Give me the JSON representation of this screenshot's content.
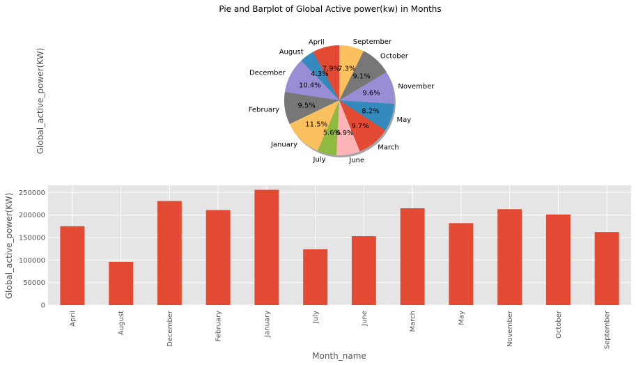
{
  "figure": {
    "title": "Pie and Barplot of Global Active power(kw) in Months"
  },
  "pie_chart": {
    "ylabel": "Global_active_power(KW)"
  },
  "bar_chart": {
    "xlabel": "Month_name",
    "ylabel": "Global_active_power(KW)"
  },
  "chart_data": [
    {
      "type": "pie",
      "ylabel": "Global_active_power(KW)",
      "startangle_deg": 90,
      "counterclock": true,
      "shadow": true,
      "slices": [
        {
          "label": "April",
          "pct_label": "7.9%",
          "value": 7.9,
          "color": "#E24A33"
        },
        {
          "label": "August",
          "pct_label": "4.3%",
          "value": 4.3,
          "color": "#348ABD"
        },
        {
          "label": "December",
          "pct_label": "10.4%",
          "value": 10.4,
          "color": "#988ED5"
        },
        {
          "label": "February",
          "pct_label": "9.5%",
          "value": 9.5,
          "color": "#777777"
        },
        {
          "label": "January",
          "pct_label": "11.5%",
          "value": 11.5,
          "color": "#FBC15E"
        },
        {
          "label": "July",
          "pct_label": "5.6%",
          "value": 5.6,
          "color": "#8EBA42"
        },
        {
          "label": "June",
          "pct_label": "6.9%",
          "value": 6.9,
          "color": "#FFB5B8"
        },
        {
          "label": "March",
          "pct_label": "9.7%",
          "value": 9.7,
          "color": "#E24A33"
        },
        {
          "label": "May",
          "pct_label": "8.2%",
          "value": 8.2,
          "color": "#348ABD"
        },
        {
          "label": "November",
          "pct_label": "9.6%",
          "value": 9.6,
          "color": "#988ED5"
        },
        {
          "label": "October",
          "pct_label": "9.1%",
          "value": 9.1,
          "color": "#777777"
        },
        {
          "label": "September",
          "pct_label": "7.3%",
          "value": 7.3,
          "color": "#FBC15E"
        }
      ]
    },
    {
      "type": "bar",
      "xlabel": "Month_name",
      "ylabel": "Global_active_power(KW)",
      "categories": [
        "April",
        "August",
        "December",
        "February",
        "January",
        "July",
        "June",
        "March",
        "May",
        "November",
        "October",
        "September"
      ],
      "values": [
        175000,
        96000,
        231000,
        211000,
        256000,
        124000,
        153000,
        215000,
        182000,
        213000,
        201000,
        162000
      ],
      "ylim": [
        0,
        266000
      ],
      "yticks": [
        0,
        50000,
        100000,
        150000,
        200000,
        250000
      ],
      "bar_color": "#E24A33",
      "background": "#E5E5E5",
      "grid": true
    }
  ]
}
